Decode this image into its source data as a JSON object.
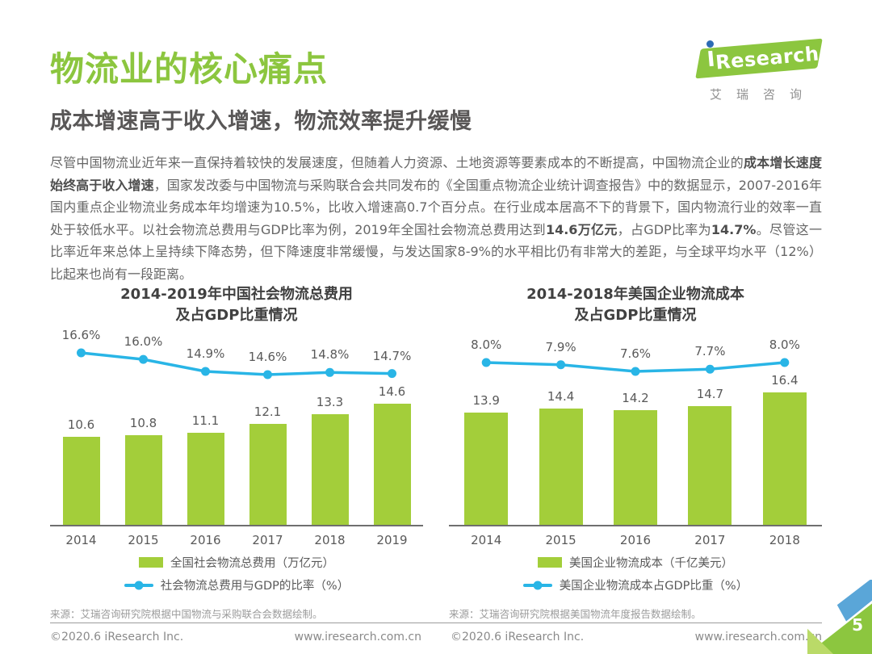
{
  "page": {
    "title": "物流业的核心痛点",
    "subtitle": "成本增速高于收入增速，物流效率提升缓慢",
    "page_number": "5"
  },
  "logo": {
    "brand": "Research",
    "chinese": "艾瑞咨询"
  },
  "paragraph": {
    "segments": [
      {
        "text": "尽管中国物流业近年来一直保持着较快的发展速度，但随着人力资源、土地资源等要素成本的不断提高，中国物流企业的",
        "bold": false
      },
      {
        "text": "成本增长速度始终高于收入增速",
        "bold": true
      },
      {
        "text": "，国家发改委与中国物流与采购联合会共同发布的《全国重点物流企业统计调查报告》中的数据显示，2007-2016年国内重点企业物流业务成本年均增速为10.5%，比收入增速高0.7个百分点。在行业成本居高不下的背景下，国内物流行业的效率一直处于较低水平。以社会物流总费用与GDP比率为例，2019年全国社会物流总费用达到",
        "bold": false
      },
      {
        "text": "14.6万亿元",
        "bold": true
      },
      {
        "text": "，占GDP比率为",
        "bold": false
      },
      {
        "text": "14.7%",
        "bold": true
      },
      {
        "text": "。尽管这一比率近年来总体上呈持续下降态势，但下降速度非常缓慢，与发达国家8-9%的水平相比仍有非常大的差距，与全球平均水平（12%）比起来也尚有一段距离。",
        "bold": false
      }
    ]
  },
  "chart_data": [
    {
      "type": "bar+line",
      "title_line1": "2014-2019年中国社会物流总费用",
      "title_line2": "及占GDP比重情况",
      "categories": [
        "2014",
        "2015",
        "2016",
        "2017",
        "2018",
        "2019"
      ],
      "series": [
        {
          "name": "全国社会物流总费用（万亿元）",
          "type": "bar",
          "unit": "万亿元",
          "values": [
            10.6,
            10.8,
            11.1,
            12.1,
            13.3,
            14.6
          ]
        },
        {
          "name": "社会物流总费用与GDP的比率（%）",
          "type": "line",
          "unit": "%",
          "values": [
            16.6,
            16.0,
            14.9,
            14.6,
            14.8,
            14.7
          ]
        }
      ],
      "legend_position": "bottom",
      "grid": false,
      "source": "来源：艾瑞咨询研究院根据中国物流与采购联合会数据绘制。"
    },
    {
      "type": "bar+line",
      "title_line1": "2014-2018年美国企业物流成本",
      "title_line2": "及占GDP比重情况",
      "categories": [
        "2014",
        "2015",
        "2016",
        "2017",
        "2018"
      ],
      "series": [
        {
          "name": "美国企业物流成本（千亿美元）",
          "type": "bar",
          "unit": "千亿美元",
          "values": [
            13.9,
            14.4,
            14.2,
            14.7,
            16.4
          ]
        },
        {
          "name": "美国企业物流成本占GDP比重（%）",
          "type": "line",
          "unit": "%",
          "values": [
            8.0,
            7.9,
            7.6,
            7.7,
            8.0
          ]
        }
      ],
      "legend_position": "bottom",
      "grid": false,
      "source": "来源：艾瑞咨询研究院根据美国物流年度报告数据绘制。"
    }
  ],
  "footer": {
    "copyright": "©2020.6 iResearch Inc.",
    "website": "www.iresearch.com.cn"
  },
  "colors": {
    "accent_green": "#8cc63f",
    "bar_green": "#a3ce3a",
    "line_cyan": "#29b5e6",
    "corner_blue": "#5aa6d8",
    "text_dark": "#595757",
    "text_body": "#666666"
  }
}
